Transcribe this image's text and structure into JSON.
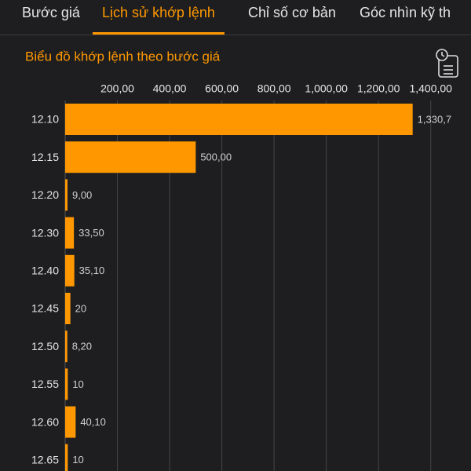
{
  "tabs": [
    "Bước giá",
    "Lịch sử khớp lệnh",
    "Chỉ số cơ bản",
    "Góc nhìn kỹ th"
  ],
  "active_tab": 1,
  "chart_data": {
    "type": "barh",
    "title": "Biểu đồ khớp lệnh theo bước giá",
    "categories": [
      "12.10",
      "12.15",
      "12.20",
      "12.30",
      "12.40",
      "12.45",
      "12.50",
      "12.55",
      "12.60",
      "12.65"
    ],
    "values": [
      1330.7,
      500,
      9,
      33.5,
      35.1,
      20,
      8.2,
      10,
      40.1,
      10
    ],
    "value_labels": [
      "1,330,7",
      "500,00",
      "9,00",
      "33,50",
      "35,10",
      "20",
      "8,20",
      "10",
      "40,10",
      "10"
    ],
    "color": "#ff9800",
    "xlim": [
      0,
      1500
    ],
    "xticks": [
      {
        "value": 200,
        "label": "200,00"
      },
      {
        "value": 400,
        "label": "400,00"
      },
      {
        "value": 600,
        "label": "600,00"
      },
      {
        "value": 800,
        "label": "800,00"
      },
      {
        "value": 1000,
        "label": "1,000,00"
      },
      {
        "value": 1200,
        "label": "1,200,00"
      },
      {
        "value": 1400,
        "label": "1,400,00"
      }
    ],
    "grid": true
  }
}
